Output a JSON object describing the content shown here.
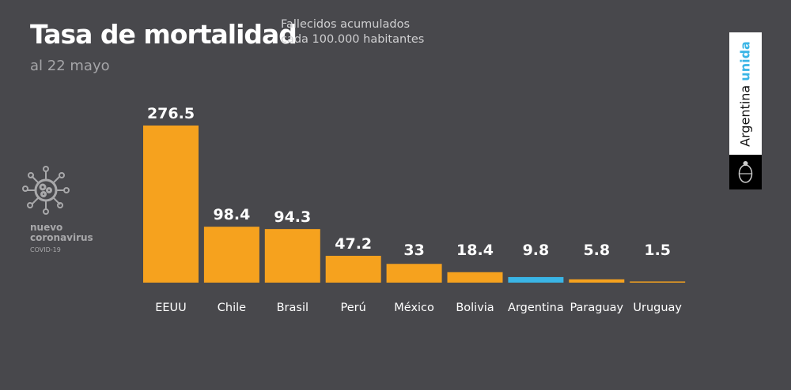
{
  "header": {
    "title": "Tasa de mortalidad",
    "subtitle_line1": "Fallecidos acumulados",
    "subtitle_line2": "cada 100.000 habitantes",
    "date": "al 22 mayo"
  },
  "badge": {
    "line1": "nuevo",
    "line2": "coronavirus",
    "line3": "COVID-19"
  },
  "logo": {
    "word1": "Argentina",
    "word2": "unida"
  },
  "colors": {
    "background": "#48484c",
    "bar": "#f6a21e",
    "highlight": "#3ab5e6"
  },
  "chart_data": {
    "type": "bar",
    "title": "Tasa de mortalidad",
    "subtitle": "Fallecidos acumulados cada 100.000 habitantes",
    "categories": [
      "EEUU",
      "Chile",
      "Brasil",
      "Perú",
      "México",
      "Bolivia",
      "Argentina",
      "Paraguay",
      "Uruguay"
    ],
    "values": [
      276.5,
      98.4,
      94.3,
      47.2,
      33,
      18.4,
      9.8,
      5.8,
      1.5
    ],
    "labels": [
      "276.5",
      "98.4",
      "94.3",
      "47.2",
      "33",
      "18.4",
      "9.8",
      "5.8",
      "1.5"
    ],
    "highlight": "Argentina",
    "xlabel": "",
    "ylabel": "",
    "ylim": [
      0,
      276.5
    ],
    "grid": false
  }
}
